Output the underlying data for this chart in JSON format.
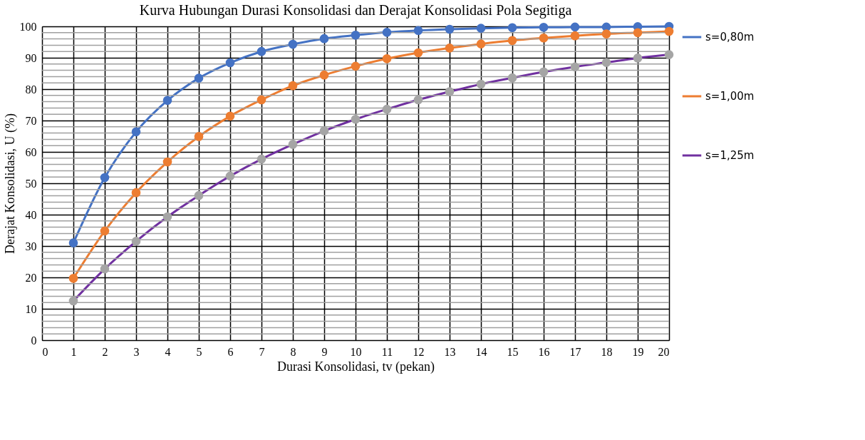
{
  "chart_data": {
    "type": "line",
    "title": "Kurva Hubungan Durasi Konsolidasi dan Derajat Konsolidasi Pola Segitiga",
    "xlabel": "Durasi Konsolidasi, tv (pekan)",
    "ylabel": "Derajat Konsolidasi, U (%)",
    "x": [
      1,
      2,
      3,
      4,
      5,
      6,
      7,
      8,
      9,
      10,
      11,
      12,
      13,
      14,
      15,
      16,
      17,
      18,
      19,
      20
    ],
    "series": [
      {
        "name": "s=0,80m",
        "color": "#4472c4",
        "values": [
          31,
          51.8,
          66.4,
          76.4,
          83.5,
          88.4,
          92,
          94.3,
          96.1,
          97.2,
          98.1,
          98.7,
          99.1,
          99.4,
          99.6,
          99.7,
          99.8,
          99.8,
          99.9,
          100
        ]
      },
      {
        "name": "s=1,00m",
        "color": "#ed7d31",
        "values": [
          19.7,
          34.8,
          47,
          56.8,
          64.9,
          71.4,
          76.6,
          81.1,
          84.5,
          87.3,
          89.7,
          91.6,
          93.1,
          94.4,
          95.5,
          96.3,
          97,
          97.6,
          98,
          98.4
        ]
      },
      {
        "name": "s=1,25m",
        "color": "#7030a0",
        "colors": [
          "#a5a5a5",
          "#a5a5a5",
          "#a5a5a5",
          "#a5a5a5",
          "#a5a5a5",
          "#a5a5a5",
          "#a5a5a5",
          "#a5a5a5",
          "#a5a5a5",
          "#a5a5a5",
          "#a5a5a5",
          "#a5a5a5",
          "#a5a5a5",
          "#a5a5a5",
          "#a5a5a5",
          "#a5a5a5",
          "#a5a5a5",
          "#a5a5a5",
          "#a5a5a5",
          "#a5a5a5"
        ],
        "values": [
          12.5,
          22.7,
          31.5,
          39.3,
          46.1,
          52.3,
          57.7,
          62.4,
          66.7,
          70.4,
          73.6,
          76.6,
          79.2,
          81.6,
          83.6,
          85.5,
          87.1,
          88.5,
          89.9,
          91
        ]
      }
    ],
    "xlim": [
      0,
      20
    ],
    "xticks": [
      0,
      1,
      2,
      3,
      4,
      5,
      6,
      7,
      8,
      9,
      10,
      11,
      12,
      13,
      14,
      15,
      16,
      17,
      18,
      19,
      20
    ],
    "ylim": [
      0,
      100
    ],
    "yticks": [
      0,
      10,
      20,
      30,
      40,
      50,
      60,
      70,
      80,
      90,
      100
    ],
    "grid": true,
    "legend": "right",
    "marker": "circle",
    "line_style": "solid"
  }
}
